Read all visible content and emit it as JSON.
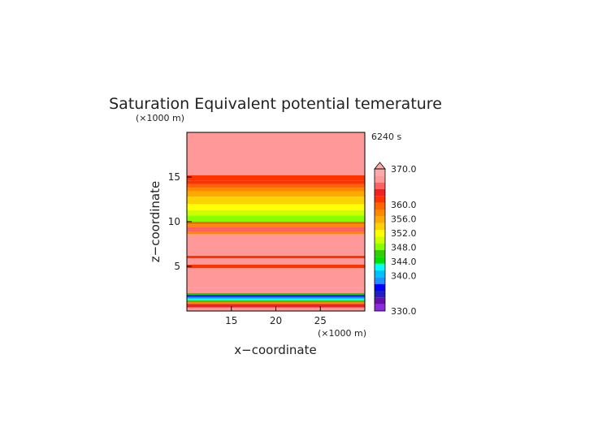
{
  "chart_data": {
    "type": "heatmap",
    "title": "Saturation Equivalent potential temerature",
    "xlabel": "x−coordinate",
    "ylabel": "z−coordinate",
    "x_unit": "(×1000 m)",
    "y_unit": "(×1000 m)",
    "time_label": "6240 s",
    "xlim": [
      10,
      30
    ],
    "ylim": [
      0,
      20
    ],
    "x_ticks": [
      15,
      20,
      25
    ],
    "y_ticks": [
      5,
      10,
      15
    ],
    "grid": false,
    "colorbar": {
      "min": 330.0,
      "max": 370.0,
      "tick_values": [
        370.0,
        360.0,
        356.0,
        352.0,
        348.0,
        344.0,
        340.0,
        330.0
      ],
      "tick_labels": [
        "370.0",
        "360.0",
        "356.0",
        "352.0",
        "348.0",
        "344.0",
        "340.0",
        "330.0"
      ],
      "colors": [
        "#8a2be2",
        "#6a0dad",
        "#2020c0",
        "#0000ff",
        "#1e90ff",
        "#00bfff",
        "#00ffff",
        "#00e000",
        "#33cc00",
        "#88ff00",
        "#ccff00",
        "#ffff00",
        "#ffd200",
        "#ffaa00",
        "#ff8800",
        "#ff6600",
        "#ff3300",
        "#ee2222",
        "#ff6060",
        "#ff9999",
        "#ffaaaa"
      ]
    },
    "bands": [
      {
        "z": [
          0.0,
          0.4
        ],
        "value": 368
      },
      {
        "z": [
          0.4,
          0.8
        ],
        "value": 363
      },
      {
        "z": [
          0.8,
          1.0
        ],
        "value": 357
      },
      {
        "z": [
          1.0,
          1.2
        ],
        "value": 347
      },
      {
        "z": [
          1.2,
          1.4
        ],
        "value": 343
      },
      {
        "z": [
          1.4,
          1.6
        ],
        "value": 339
      },
      {
        "z": [
          1.6,
          1.8
        ],
        "value": 337
      },
      {
        "z": [
          1.8,
          2.0
        ],
        "value": 345
      },
      {
        "z": [
          2.0,
          2.6
        ],
        "value": 368
      },
      {
        "z": [
          2.6,
          4.8
        ],
        "value": 368
      },
      {
        "z": [
          4.8,
          5.2
        ],
        "value": 361
      },
      {
        "z": [
          5.2,
          5.9
        ],
        "value": 367
      },
      {
        "z": [
          5.9,
          6.2
        ],
        "value": 362
      },
      {
        "z": [
          6.2,
          8.6
        ],
        "value": 368
      },
      {
        "z": [
          8.6,
          8.9
        ],
        "value": 358
      },
      {
        "z": [
          8.9,
          9.4
        ],
        "value": 365
      },
      {
        "z": [
          9.4,
          9.7
        ],
        "value": 357
      },
      {
        "z": [
          9.7,
          10.0
        ],
        "value": 360
      },
      {
        "z": [
          10.0,
          10.7
        ],
        "value": 348
      },
      {
        "z": [
          10.7,
          11.3
        ],
        "value": 350
      },
      {
        "z": [
          11.3,
          12.0
        ],
        "value": 351
      },
      {
        "z": [
          12.0,
          12.8
        ],
        "value": 353
      },
      {
        "z": [
          12.8,
          13.4
        ],
        "value": 355
      },
      {
        "z": [
          13.4,
          13.8
        ],
        "value": 357
      },
      {
        "z": [
          13.8,
          14.2
        ],
        "value": 359
      },
      {
        "z": [
          14.2,
          14.6
        ],
        "value": 361
      },
      {
        "z": [
          14.6,
          15.2
        ],
        "value": 362
      },
      {
        "z": [
          15.2,
          20.0
        ],
        "value": 368
      }
    ]
  }
}
